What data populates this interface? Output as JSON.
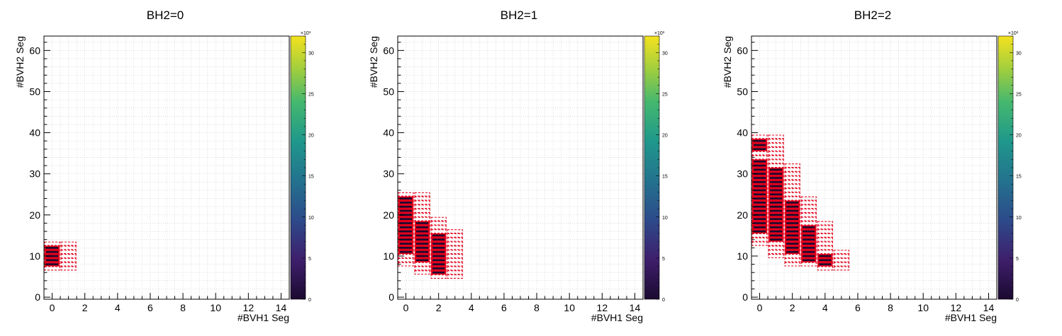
{
  "chart_data": [
    {
      "type": "heatmap",
      "title": "BH2=0",
      "xlabel": "#BVH1 Seg",
      "ylabel": "#BVH2 Seg",
      "xlim": [
        -0.5,
        14.5
      ],
      "ylim": [
        -0.5,
        63.5
      ],
      "xticks": [
        "0",
        "2",
        "4",
        "6",
        "8",
        "10",
        "12",
        "14"
      ],
      "yticks": [
        "0",
        "10",
        "20",
        "30",
        "40",
        "50",
        "60"
      ],
      "grid": true,
      "colorbar": {
        "range": [
          0,
          32
        ],
        "ticks": [
          "0",
          "5",
          "10",
          "15",
          "20",
          "25",
          "30"
        ],
        "exponent": "×10³"
      },
      "cells": [
        {
          "x": 0,
          "y": [
            8,
            12
          ]
        }
      ],
      "region": [
        {
          "x": 0,
          "y": [
            7,
            13
          ]
        },
        {
          "x": 1,
          "y": [
            7,
            13
          ]
        }
      ]
    },
    {
      "type": "heatmap",
      "title": "BH2=1",
      "xlabel": "#BVH1 Seg",
      "ylabel": "#BVH2 Seg",
      "xlim": [
        -0.5,
        14.5
      ],
      "ylim": [
        -0.5,
        63.5
      ],
      "xticks": [
        "0",
        "2",
        "4",
        "6",
        "8",
        "10",
        "12",
        "14"
      ],
      "yticks": [
        "0",
        "10",
        "20",
        "30",
        "40",
        "50",
        "60"
      ],
      "grid": true,
      "colorbar": {
        "range": [
          0,
          32
        ],
        "ticks": [
          "0",
          "5",
          "10",
          "15",
          "20",
          "25",
          "30"
        ],
        "exponent": "×10³"
      },
      "cells": [
        {
          "x": 0,
          "y": [
            11,
            24
          ]
        },
        {
          "x": 1,
          "y": [
            9,
            18
          ]
        },
        {
          "x": 2,
          "y": [
            6,
            15
          ]
        }
      ],
      "region": [
        {
          "x": 0,
          "y": [
            8,
            25
          ]
        },
        {
          "x": 1,
          "y": [
            6,
            25
          ]
        },
        {
          "x": 2,
          "y": [
            5,
            19
          ]
        },
        {
          "x": 3,
          "y": [
            5,
            16
          ]
        }
      ]
    },
    {
      "type": "heatmap",
      "title": "BH2=2",
      "xlabel": "#BVH1 Seg",
      "ylabel": "#BVH2 Seg",
      "xlim": [
        -0.5,
        14.5
      ],
      "ylim": [
        -0.5,
        63.5
      ],
      "xticks": [
        "0",
        "2",
        "4",
        "6",
        "8",
        "10",
        "12",
        "14"
      ],
      "yticks": [
        "0",
        "10",
        "20",
        "30",
        "40",
        "50",
        "60"
      ],
      "grid": true,
      "colorbar": {
        "range": [
          0,
          32
        ],
        "ticks": [
          "0",
          "5",
          "10",
          "15",
          "20",
          "25",
          "30"
        ],
        "exponent": "×10³"
      },
      "cells": [
        {
          "x": 0,
          "y": [
            16,
            33
          ]
        },
        {
          "x": 0,
          "y": [
            36,
            38
          ]
        },
        {
          "x": 1,
          "y": [
            14,
            31
          ]
        },
        {
          "x": 2,
          "y": [
            11,
            23
          ]
        },
        {
          "x": 3,
          "y": [
            9,
            17
          ]
        },
        {
          "x": 4,
          "y": [
            8,
            10
          ]
        }
      ],
      "region": [
        {
          "x": 0,
          "y": [
            13,
            39
          ]
        },
        {
          "x": 1,
          "y": [
            10,
            39
          ]
        },
        {
          "x": 2,
          "y": [
            8,
            32
          ]
        },
        {
          "x": 3,
          "y": [
            8,
            24
          ]
        },
        {
          "x": 4,
          "y": [
            7,
            18
          ]
        },
        {
          "x": 5,
          "y": [
            7,
            11
          ]
        }
      ]
    }
  ]
}
